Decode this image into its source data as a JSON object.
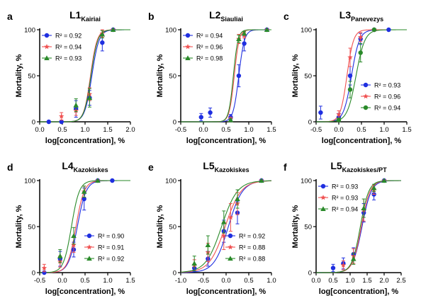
{
  "chart_data": [
    {
      "type": "scatter",
      "letter": "a",
      "title": "L1",
      "title_sub": "Kairiai",
      "xlabel": "log[concentration], %",
      "ylabel": "Mortality, %",
      "xlim": [
        0.0,
        2.0
      ],
      "xticks": [
        "0.0",
        "0.5",
        "1.0",
        "1.5",
        "2.0"
      ],
      "ylim": [
        0,
        100
      ],
      "yticks": [
        "0",
        "50",
        "100"
      ],
      "legend_position": "top-left",
      "series": [
        {
          "legend_label": "R² = 0.92",
          "color": "#1f2fe0",
          "marker": "circle",
          "curve": {
            "ec50": 1.15,
            "slope": 5.5
          },
          "points": [
            {
              "x": 0.2,
              "y": 0,
              "err": 0
            },
            {
              "x": 0.48,
              "y": 0,
              "err": 1
            },
            {
              "x": 0.8,
              "y": 14,
              "err": 9
            },
            {
              "x": 1.1,
              "y": 26,
              "err": 8
            },
            {
              "x": 1.38,
              "y": 86,
              "err": 9
            },
            {
              "x": 1.62,
              "y": 100,
              "err": 0
            }
          ]
        },
        {
          "legend_label": "R² = 0.94",
          "color": "#f05050",
          "marker": "star",
          "curve": {
            "ec50": 1.12,
            "slope": 6.0
          },
          "points": [
            {
              "x": 0.48,
              "y": 6,
              "err": 4
            },
            {
              "x": 0.8,
              "y": 12,
              "err": 5
            },
            {
              "x": 1.1,
              "y": 30,
              "err": 7
            },
            {
              "x": 1.38,
              "y": 96,
              "err": 4
            },
            {
              "x": 1.62,
              "y": 100,
              "err": 0
            }
          ]
        },
        {
          "legend_label": "R² = 0.93",
          "color": "#2a8a2a",
          "marker": "triangle",
          "curve": {
            "ec50": 1.13,
            "slope": 5.8
          },
          "points": [
            {
              "x": 0.8,
              "y": 18,
              "err": 7
            },
            {
              "x": 1.1,
              "y": 26,
              "err": 10
            },
            {
              "x": 1.38,
              "y": 95,
              "err": 4
            },
            {
              "x": 1.62,
              "y": 100,
              "err": 0
            }
          ]
        }
      ]
    },
    {
      "type": "scatter",
      "letter": "b",
      "title": "L2",
      "title_sub": "Siauliai",
      "xlabel": "log[concentration], %",
      "ylabel": "Mortality, %",
      "xlim": [
        -0.5,
        1.5
      ],
      "xticks": [
        "-0.5",
        "0.0",
        "0.5",
        "1.0",
        "1.5"
      ],
      "ylim": [
        0,
        100
      ],
      "yticks": [
        "0",
        "50",
        "100"
      ],
      "legend_position": "top-left",
      "series": [
        {
          "legend_label": "R² = 0.94",
          "color": "#1f2fe0",
          "marker": "circle",
          "curve": {
            "ec50": 0.78,
            "slope": 7.0
          },
          "points": [
            {
              "x": -0.05,
              "y": 5,
              "err": 4
            },
            {
              "x": 0.15,
              "y": 10,
              "err": 5
            },
            {
              "x": 0.6,
              "y": 5,
              "err": 3
            },
            {
              "x": 0.78,
              "y": 50,
              "err": 12
            },
            {
              "x": 0.9,
              "y": 85,
              "err": 8
            },
            {
              "x": 1.4,
              "y": 100,
              "err": 0
            }
          ]
        },
        {
          "legend_label": "R² = 0.96",
          "color": "#f05050",
          "marker": "star",
          "curve": {
            "ec50": 0.68,
            "slope": 8.0
          },
          "points": [
            {
              "x": 0.6,
              "y": 3,
              "err": 2
            },
            {
              "x": 0.78,
              "y": 90,
              "err": 5
            },
            {
              "x": 0.9,
              "y": 94,
              "err": 3
            },
            {
              "x": 1.4,
              "y": 100,
              "err": 0
            }
          ]
        },
        {
          "legend_label": "R² = 0.98",
          "color": "#2a8a2a",
          "marker": "triangle",
          "curve": {
            "ec50": 0.66,
            "slope": 8.5
          },
          "points": [
            {
              "x": 0.6,
              "y": 2,
              "err": 1
            },
            {
              "x": 0.78,
              "y": 90,
              "err": 4
            },
            {
              "x": 0.9,
              "y": 96,
              "err": 2
            },
            {
              "x": 1.4,
              "y": 100,
              "err": 0
            }
          ]
        }
      ]
    },
    {
      "type": "scatter",
      "letter": "c",
      "title": "L3",
      "title_sub": "Panevezys",
      "xlabel": "log[concentration], %",
      "ylabel": "Mortality, %",
      "xlim": [
        -0.5,
        1.5
      ],
      "xticks": [
        "-0.5",
        "0.0",
        "0.5",
        "1.0",
        "1.5"
      ],
      "ylim": [
        0,
        100
      ],
      "yticks": [
        "0",
        "50",
        "100"
      ],
      "legend_position": "bottom-right",
      "series": [
        {
          "legend_label": "R² = 0.93",
          "color": "#1f2fe0",
          "marker": "circle",
          "curve": {
            "ec50": 0.28,
            "slope": 5.0
          },
          "points": [
            {
              "x": -0.4,
              "y": 10,
              "err": 7
            },
            {
              "x": 0.0,
              "y": 5,
              "err": 4
            },
            {
              "x": 0.25,
              "y": 50,
              "err": 10
            },
            {
              "x": 0.48,
              "y": 90,
              "err": 6
            },
            {
              "x": 0.78,
              "y": 100,
              "err": 0
            },
            {
              "x": 1.1,
              "y": 100,
              "err": 0
            }
          ]
        },
        {
          "legend_label": "R² = 0.96",
          "color": "#f05050",
          "marker": "star",
          "curve": {
            "ec50": 0.18,
            "slope": 6.0
          },
          "points": [
            {
              "x": 0.0,
              "y": 8,
              "err": 4
            },
            {
              "x": 0.25,
              "y": 70,
              "err": 10
            },
            {
              "x": 0.48,
              "y": 92,
              "err": 5
            },
            {
              "x": 0.78,
              "y": 100,
              "err": 0
            }
          ]
        },
        {
          "legend_label": "R² = 0.94",
          "color": "#2a8a2a",
          "marker": "circle",
          "curve": {
            "ec50": 0.38,
            "slope": 4.5
          },
          "points": [
            {
              "x": 0.0,
              "y": 2,
              "err": 2
            },
            {
              "x": 0.25,
              "y": 35,
              "err": 9
            },
            {
              "x": 0.48,
              "y": 75,
              "err": 10
            },
            {
              "x": 0.78,
              "y": 100,
              "err": 0
            }
          ]
        }
      ]
    },
    {
      "type": "scatter",
      "letter": "d",
      "title": "L4",
      "title_sub": "Kazokiskes",
      "xlabel": "log[concentration], %",
      "ylabel": "Mortality, %",
      "xlim": [
        -0.5,
        1.5
      ],
      "xticks": [
        "-0.5",
        "0.0",
        "0.5",
        "1.0",
        "1.5"
      ],
      "ylim": [
        0,
        100
      ],
      "yticks": [
        "0",
        "50",
        "100"
      ],
      "legend_position": "bottom-right",
      "series": [
        {
          "legend_label": "R² = 0.90",
          "color": "#1f2fe0",
          "marker": "circle",
          "curve": {
            "ec50": 0.33,
            "slope": 4.5
          },
          "points": [
            {
              "x": -0.4,
              "y": 0,
              "err": 0
            },
            {
              "x": -0.05,
              "y": 15,
              "err": 8
            },
            {
              "x": 0.25,
              "y": 25,
              "err": 8
            },
            {
              "x": 0.48,
              "y": 80,
              "err": 12
            },
            {
              "x": 0.78,
              "y": 100,
              "err": 0
            },
            {
              "x": 1.1,
              "y": 100,
              "err": 0
            }
          ]
        },
        {
          "legend_label": "R² = 0.91",
          "color": "#f05050",
          "marker": "star",
          "curve": {
            "ec50": 0.3,
            "slope": 4.8
          },
          "points": [
            {
              "x": -0.4,
              "y": 5,
              "err": 4
            },
            {
              "x": -0.05,
              "y": 12,
              "err": 6
            },
            {
              "x": 0.25,
              "y": 30,
              "err": 8
            },
            {
              "x": 0.48,
              "y": 88,
              "err": 6
            },
            {
              "x": 0.78,
              "y": 100,
              "err": 0
            }
          ]
        },
        {
          "legend_label": "R² = 0.92",
          "color": "#2a8a2a",
          "marker": "triangle",
          "curve": {
            "ec50": 0.2,
            "slope": 5.0
          },
          "points": [
            {
              "x": -0.05,
              "y": 18,
              "err": 7
            },
            {
              "x": 0.25,
              "y": 40,
              "err": 9
            },
            {
              "x": 0.48,
              "y": 88,
              "err": 6
            },
            {
              "x": 0.78,
              "y": 100,
              "err": 0
            }
          ]
        }
      ]
    },
    {
      "type": "scatter",
      "letter": "e",
      "title": "L5",
      "title_sub": "Kazokiskes",
      "xlabel": "log[concentration], %",
      "ylabel": "Mortality, %",
      "xlim": [
        -1.0,
        1.0
      ],
      "xticks": [
        "-1.0",
        "-0.5",
        "0.0",
        "0.5",
        "1.0"
      ],
      "ylim": [
        0,
        100
      ],
      "yticks": [
        "0",
        "50",
        "100"
      ],
      "legend_position": "bottom-right",
      "series": [
        {
          "legend_label": "R² = 0.92",
          "color": "#1f2fe0",
          "marker": "circle",
          "curve": {
            "ec50": 0.05,
            "slope": 2.8
          },
          "points": [
            {
              "x": -0.7,
              "y": 5,
              "err": 4
            },
            {
              "x": -0.4,
              "y": 15,
              "err": 8
            },
            {
              "x": -0.05,
              "y": 45,
              "err": 12
            },
            {
              "x": 0.25,
              "y": 65,
              "err": 12
            },
            {
              "x": 0.78,
              "y": 100,
              "err": 0
            }
          ]
        },
        {
          "legend_label": "R² = 0.88",
          "color": "#f05050",
          "marker": "star",
          "curve": {
            "ec50": -0.02,
            "slope": 2.5
          },
          "points": [
            {
              "x": -0.7,
              "y": 8,
              "err": 6
            },
            {
              "x": -0.4,
              "y": 22,
              "err": 10
            },
            {
              "x": -0.05,
              "y": 40,
              "err": 15
            },
            {
              "x": 0.1,
              "y": 60,
              "err": 15
            },
            {
              "x": 0.25,
              "y": 75,
              "err": 12
            },
            {
              "x": 0.78,
              "y": 100,
              "err": 0
            }
          ]
        },
        {
          "legend_label": "R² = 0.88",
          "color": "#2a8a2a",
          "marker": "triangle",
          "curve": {
            "ec50": -0.1,
            "slope": 2.5
          },
          "points": [
            {
              "x": -0.7,
              "y": 10,
              "err": 8
            },
            {
              "x": -0.4,
              "y": 30,
              "err": 10
            },
            {
              "x": -0.05,
              "y": 55,
              "err": 12
            },
            {
              "x": 0.25,
              "y": 80,
              "err": 10
            },
            {
              "x": 0.78,
              "y": 100,
              "err": 0
            }
          ]
        }
      ]
    },
    {
      "type": "scatter",
      "letter": "f",
      "title": "L5",
      "title_sub": "Kazokiskes/PT",
      "xlabel": "log[concentration], %",
      "ylabel": "Mortality, %",
      "xlim": [
        0.0,
        2.5
      ],
      "xticks": [
        "0.0",
        "0.5",
        "1.0",
        "1.5",
        "2.0",
        "2.5"
      ],
      "ylim": [
        0,
        100
      ],
      "yticks": [
        "0",
        "50",
        "100"
      ],
      "legend_position": "top-left",
      "series": [
        {
          "legend_label": "R² = 0.93",
          "color": "#1f2fe0",
          "marker": "circle",
          "curve": {
            "ec50": 1.35,
            "slope": 3.2
          },
          "points": [
            {
              "x": 0.5,
              "y": 5,
              "err": 4
            },
            {
              "x": 0.8,
              "y": 10,
              "err": 6
            },
            {
              "x": 1.1,
              "y": 20,
              "err": 7
            },
            {
              "x": 1.4,
              "y": 65,
              "err": 10
            },
            {
              "x": 1.7,
              "y": 85,
              "err": 6
            },
            {
              "x": 2.0,
              "y": 100,
              "err": 0
            }
          ]
        },
        {
          "legend_label": "R² = 0.93",
          "color": "#f05050",
          "marker": "star",
          "curve": {
            "ec50": 1.33,
            "slope": 3.4
          },
          "points": [
            {
              "x": 0.8,
              "y": 8,
              "err": 5
            },
            {
              "x": 1.1,
              "y": 18,
              "err": 8
            },
            {
              "x": 1.4,
              "y": 68,
              "err": 12
            },
            {
              "x": 1.7,
              "y": 90,
              "err": 5
            },
            {
              "x": 2.0,
              "y": 100,
              "err": 0
            }
          ]
        },
        {
          "legend_label": "R² = 0.94",
          "color": "#2a8a2a",
          "marker": "triangle",
          "curve": {
            "ec50": 1.3,
            "slope": 3.5
          },
          "points": [
            {
              "x": 1.1,
              "y": 15,
              "err": 6
            },
            {
              "x": 1.4,
              "y": 70,
              "err": 10
            },
            {
              "x": 1.7,
              "y": 92,
              "err": 4
            },
            {
              "x": 2.0,
              "y": 100,
              "err": 0
            }
          ]
        }
      ]
    }
  ]
}
